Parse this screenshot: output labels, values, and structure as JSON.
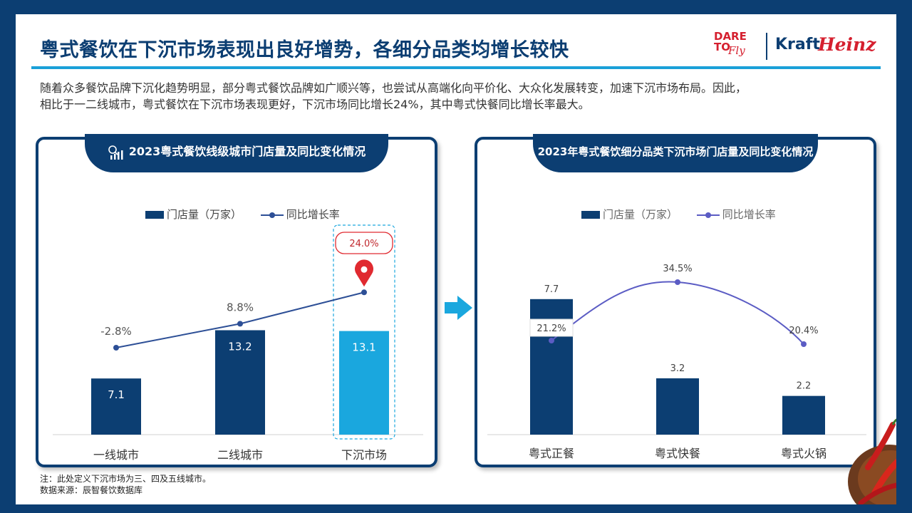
{
  "header": {
    "title": "粤式餐饮在下沉市场表现出良好增势，各细分品类均增长较快",
    "logo_dare": "DARE TO",
    "logo_fly": "Fly",
    "logo_kraft": "Kraft",
    "logo_heinz": "Heinz"
  },
  "intro": {
    "line1": "随着众多餐饮品牌下沉化趋势明显，部分粤式餐饮品牌如广顺兴等，也尝试从高端化向平价化、大众化发展转变，加速下沉市场布局。因此，",
    "line2": "相比于一二线城市，粤式餐饮在下沉市场表现更好，下沉市场同比增长24%，其中粤式快餐同比增长率最大。"
  },
  "notes": {
    "note": "注：此处定义下沉市场为三、四及五线城市。",
    "source": "数据来源：辰智餐饮数据库"
  },
  "colors": {
    "navy": "#0c3e72",
    "cyan": "#1aa7de",
    "line_left": "#2d4f96",
    "line_right": "#5b5cc4",
    "pin": "#e02a30"
  },
  "icons": {
    "panel_left": "chart-report-icon",
    "pin": "location-pin-icon",
    "arrow": "arrow-right-icon"
  },
  "chart_data": [
    {
      "type": "bar",
      "title": "2023粤式餐饮线级城市门店量及同比变化情况",
      "categories": [
        "一线城市",
        "二线城市",
        "下沉市场"
      ],
      "series": [
        {
          "name": "门店量（万家）",
          "type": "bar",
          "values": [
            7.1,
            13.2,
            13.1
          ],
          "labels": [
            "7.1",
            "13.2",
            "13.1"
          ]
        },
        {
          "name": "同比增长率",
          "type": "line",
          "values": [
            -2.8,
            8.8,
            24.0
          ],
          "labels": [
            "-2.8%",
            "8.8%",
            "24.0%"
          ]
        }
      ],
      "highlight_category": "下沉市场",
      "legend": "top"
    },
    {
      "type": "bar",
      "title": "2023年粤式餐饮细分品类下沉市场门店量及同比变化情况",
      "categories": [
        "粤式正餐",
        "粤式快餐",
        "粤式火锅"
      ],
      "series": [
        {
          "name": "门店量（万家）",
          "type": "bar",
          "values": [
            7.7,
            3.2,
            2.2
          ],
          "labels": [
            "7.7",
            "3.2",
            "2.2"
          ]
        },
        {
          "name": "同比增长率",
          "type": "line",
          "values": [
            21.2,
            34.5,
            20.4
          ],
          "labels": [
            "21.2%",
            "34.5%",
            "20.4%"
          ]
        }
      ],
      "legend": "top"
    }
  ]
}
